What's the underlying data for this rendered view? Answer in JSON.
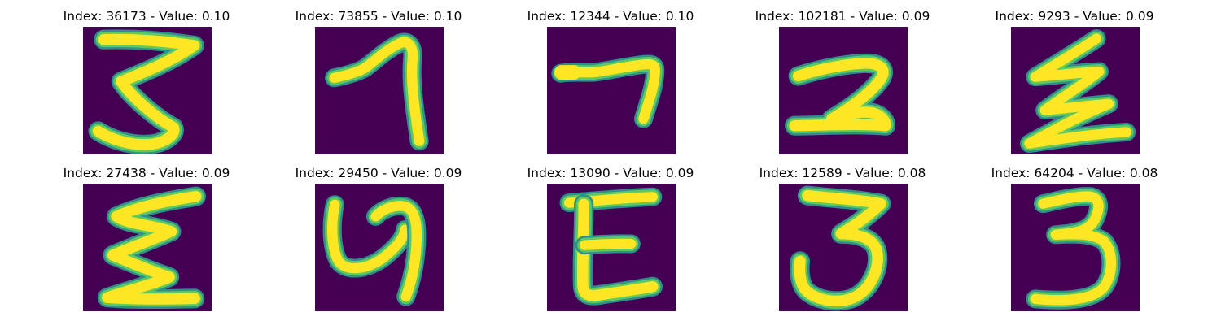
{
  "figure": {
    "background_color": "#440154",
    "stroke_colors": {
      "halo": "#2f8f8b",
      "edge": "#5ec962",
      "core": "#fde725"
    },
    "panels": [
      {
        "title": "Index: 36173 - Value: 0.10",
        "depicted_glyph": "3",
        "panel_name": "panel-36173"
      },
      {
        "title": "Index: 73855 - Value: 0.10",
        "depicted_glyph": "1",
        "panel_name": "panel-73855"
      },
      {
        "title": "Index: 12344 - Value: 0.10",
        "depicted_glyph": "7",
        "panel_name": "panel-12344"
      },
      {
        "title": "Index: 102181 - Value: 0.09",
        "depicted_glyph": "2",
        "panel_name": "panel-102181"
      },
      {
        "title": "Index: 9293 - Value: 0.09",
        "depicted_glyph": "z",
        "panel_name": "panel-9293"
      },
      {
        "title": "Index: 27438 - Value: 0.09",
        "depicted_glyph": "Σ",
        "panel_name": "panel-27438"
      },
      {
        "title": "Index: 29450 - Value: 0.09",
        "depicted_glyph": "4",
        "panel_name": "panel-29450"
      },
      {
        "title": "Index: 13090 - Value: 0.09",
        "depicted_glyph": "E",
        "panel_name": "panel-13090"
      },
      {
        "title": "Index: 12589 - Value: 0.08",
        "depicted_glyph": "3",
        "panel_name": "panel-12589"
      },
      {
        "title": "Index: 64204 - Value: 0.08",
        "depicted_glyph": "3",
        "panel_name": "panel-64204"
      }
    ]
  }
}
